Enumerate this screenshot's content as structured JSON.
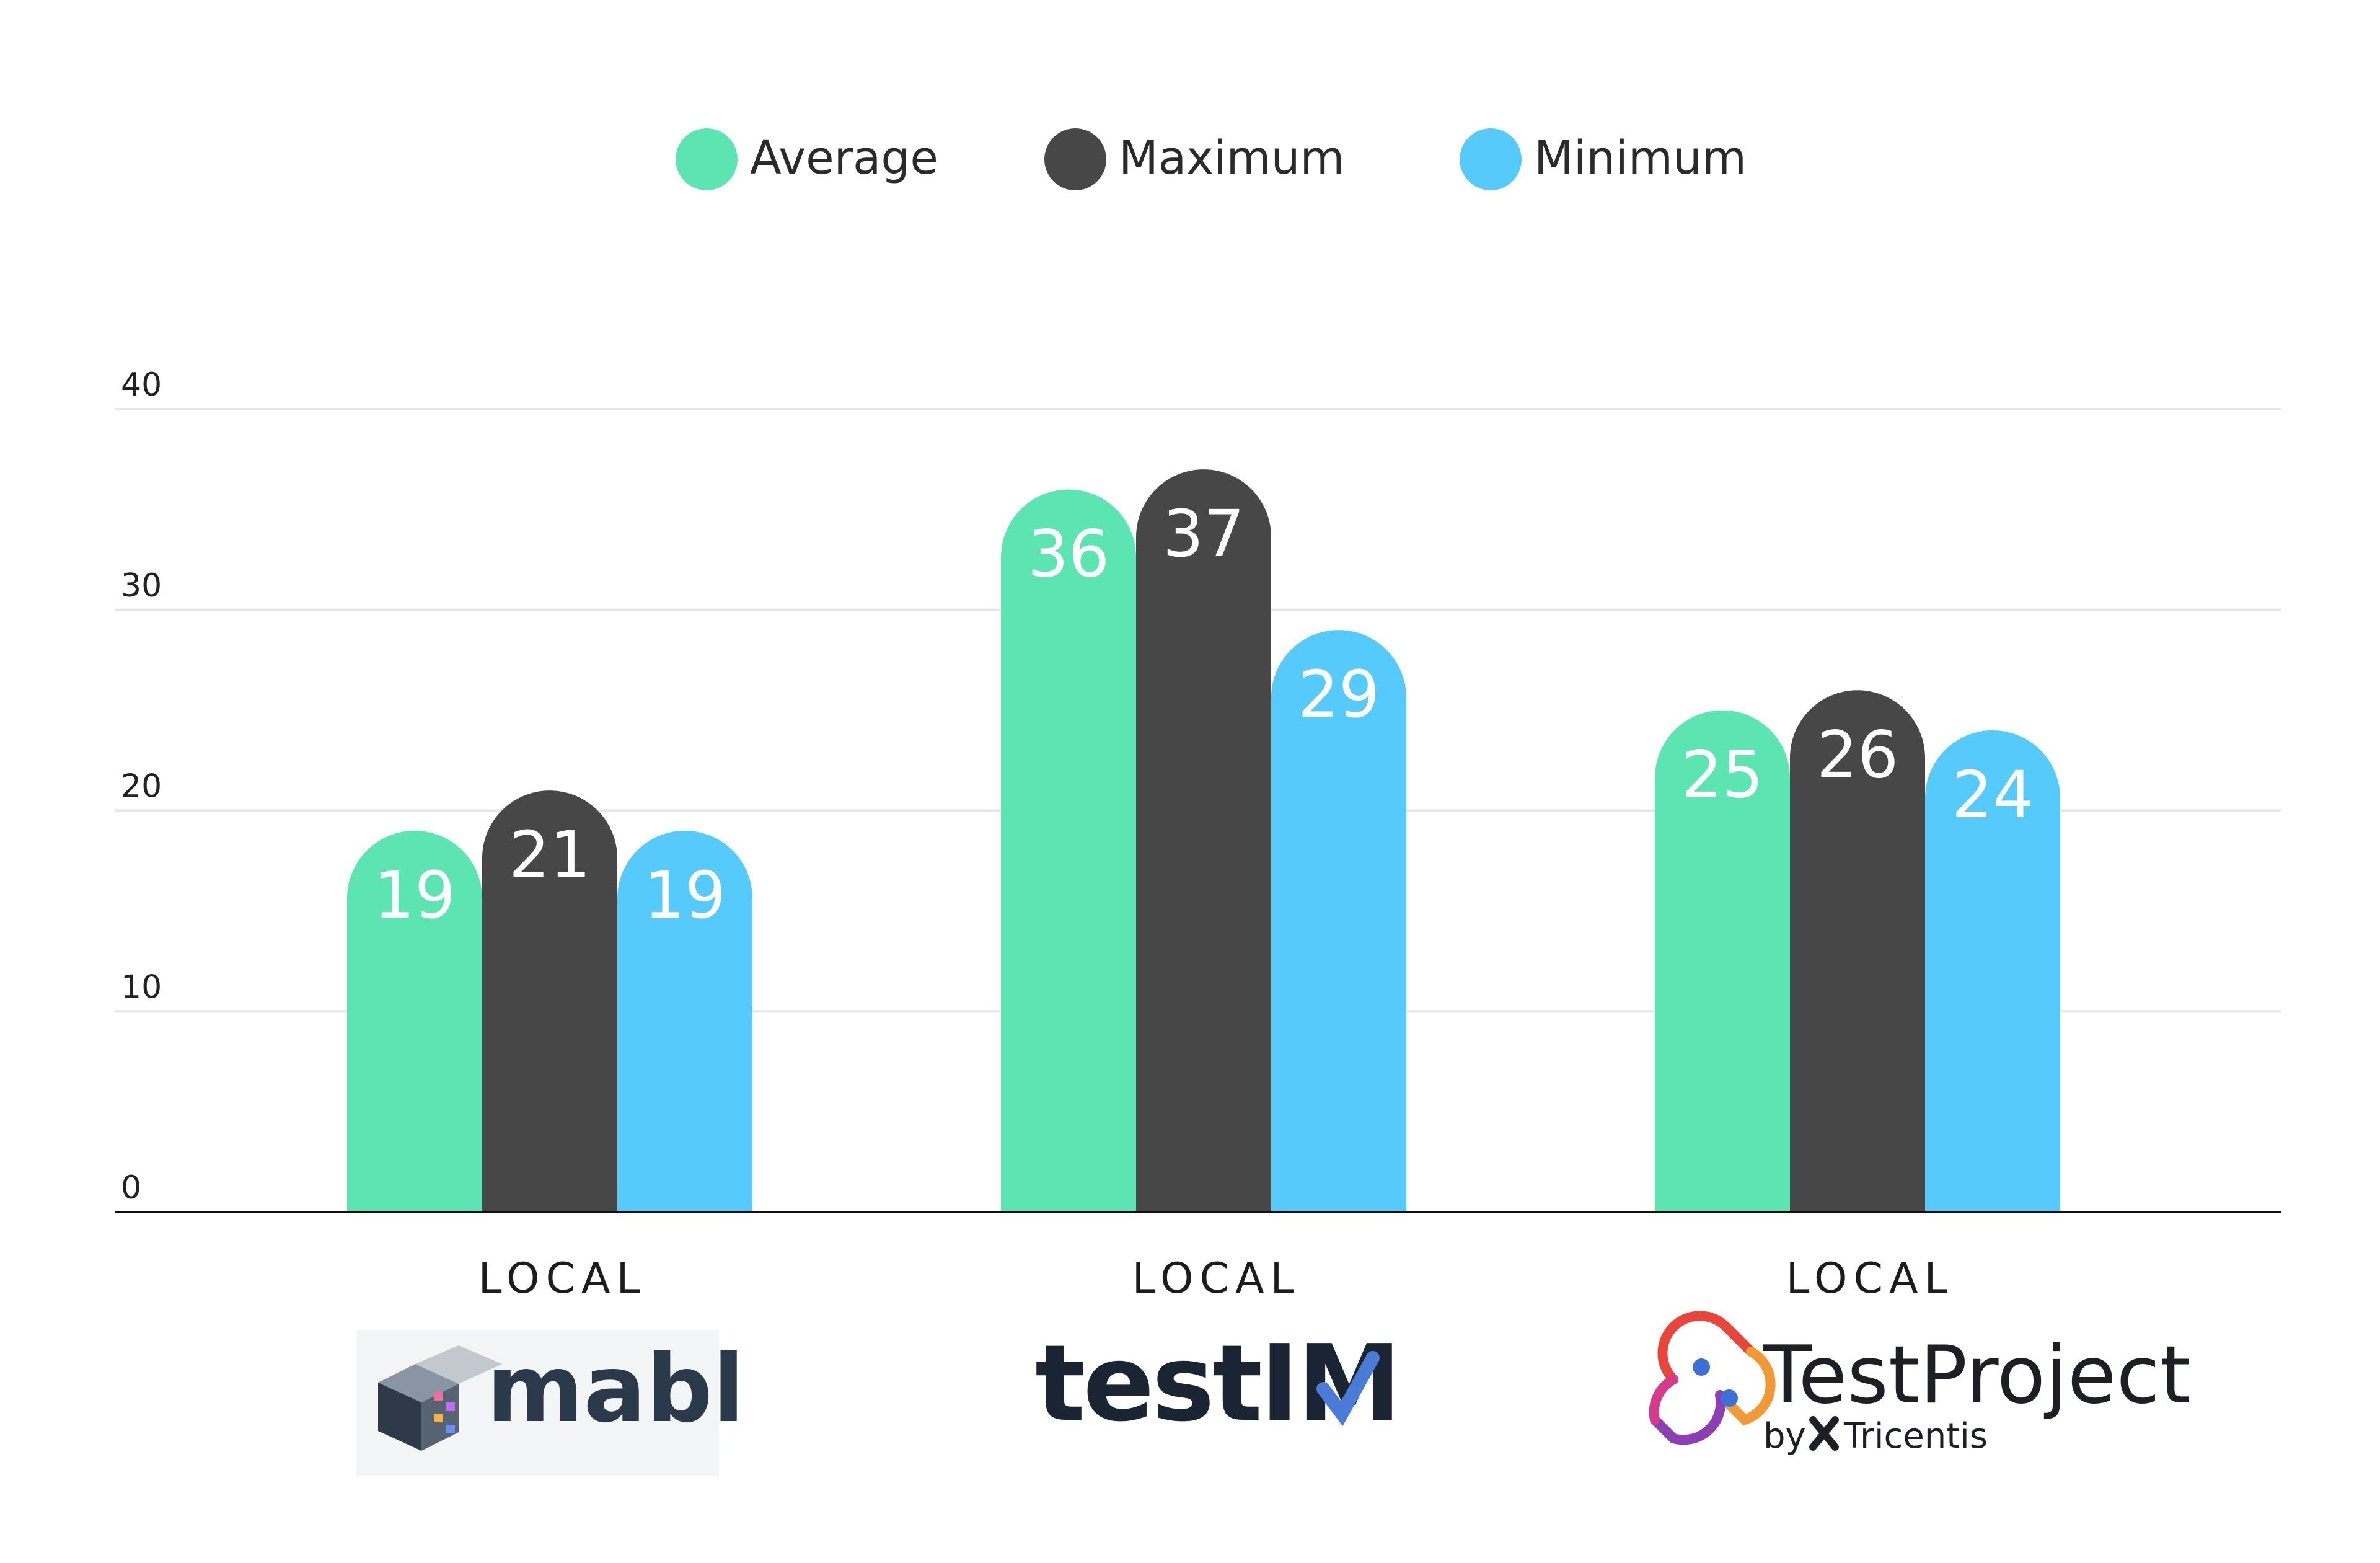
{
  "chart_data": {
    "type": "bar",
    "categories": [
      "LOCAL",
      "LOCAL",
      "LOCAL"
    ],
    "tools": [
      "mabl",
      "testim",
      "TestProject"
    ],
    "series": [
      {
        "name": "Average",
        "values": [
          19,
          36,
          25
        ],
        "color": "#5ce5b2"
      },
      {
        "name": "Maximum",
        "values": [
          21,
          37,
          26
        ],
        "color": "#474747"
      },
      {
        "name": "Minimum",
        "values": [
          19,
          29,
          24
        ],
        "color": "#57cafc"
      }
    ],
    "yticks": [
      0,
      10,
      20,
      30,
      40
    ],
    "ylim": [
      0,
      40
    ],
    "grid": true,
    "legend_position": "top-center",
    "data_labels": true
  },
  "logos": {
    "testproject_sub_by": "by",
    "testproject_sub_name": "Tricentis"
  }
}
